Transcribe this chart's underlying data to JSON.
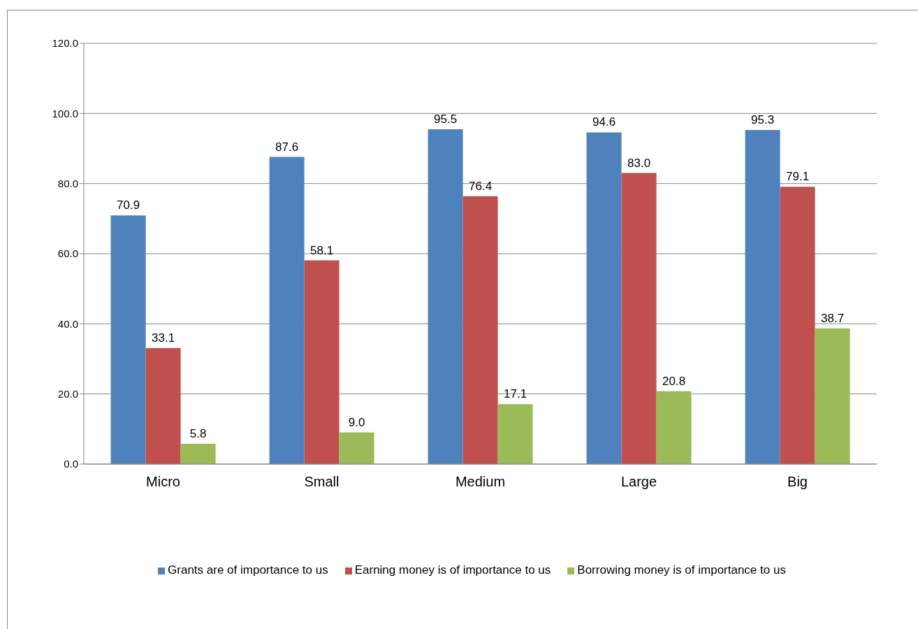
{
  "chart_data": {
    "type": "bar",
    "categories": [
      "Micro",
      "Small",
      "Medium",
      "Large",
      "Big"
    ],
    "series": [
      {
        "name": "Grants are of importance to us",
        "color": "#4f81bd",
        "values": [
          70.9,
          87.6,
          95.5,
          94.6,
          95.3
        ],
        "value_labels": [
          "70.9",
          "87.6",
          "95.5",
          "94.6",
          "95.3"
        ]
      },
      {
        "name": "Earning money is of importance to us",
        "color": "#c0504d",
        "values": [
          33.1,
          58.1,
          76.4,
          83.0,
          79.1
        ],
        "value_labels": [
          "33.1",
          "58.1",
          "76.4",
          "83.0",
          "79.1"
        ]
      },
      {
        "name": "Borrowing money is of importance to us",
        "color": "#9bbb59",
        "values": [
          5.8,
          9.0,
          17.1,
          20.8,
          38.7
        ],
        "value_labels": [
          "5.8",
          "9.0",
          "17.1",
          "20.8",
          "38.7"
        ]
      }
    ],
    "ylim": [
      0,
      120
    ],
    "yticks": [
      {
        "value": 0,
        "label": "0.0"
      },
      {
        "value": 20,
        "label": "20.0"
      },
      {
        "value": 40,
        "label": "40.0"
      },
      {
        "value": 60,
        "label": "60.0"
      },
      {
        "value": 80,
        "label": "80.0"
      },
      {
        "value": 100,
        "label": "100.0"
      },
      {
        "value": 120,
        "label": "120.0"
      }
    ],
    "grid": "y",
    "legend": "bottom"
  }
}
